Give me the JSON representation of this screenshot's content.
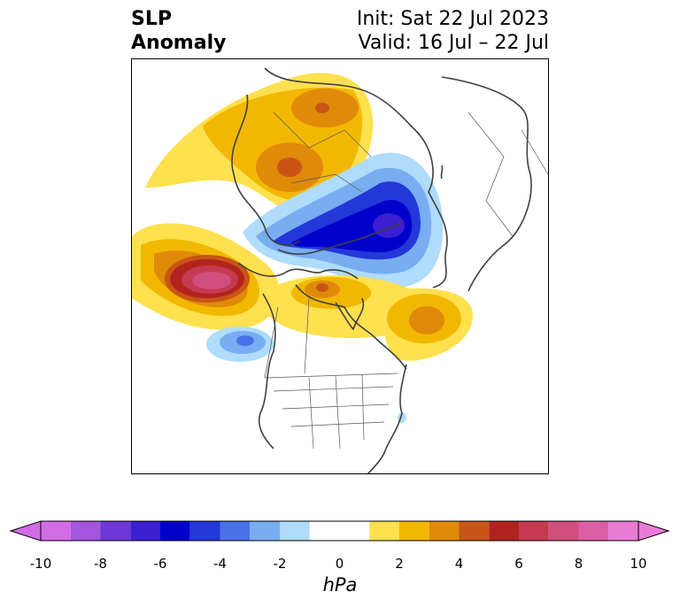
{
  "title": {
    "left_line1": "SLP",
    "left_line2": "Anomaly",
    "right_line1": "Init: Sat 22 Jul 2023",
    "right_line2": "Valid: 16 Jul – 22 Jul"
  },
  "colorbar": {
    "label": "hPa",
    "ticks": [
      "-10",
      "-8",
      "-6",
      "-4",
      "-2",
      "0",
      "2",
      "4",
      "6",
      "8",
      "10"
    ],
    "colors": [
      "#d36be6",
      "#a456e0",
      "#6d38d8",
      "#3b1fd0",
      "#0000cc",
      "#2338d8",
      "#4a72e8",
      "#78adf2",
      "#aedcfa",
      "#ffffff",
      "#ffe04e",
      "#f2b800",
      "#e08a0a",
      "#c85516",
      "#b3231e",
      "#c43a50",
      "#d24e7e",
      "#dc5fa6",
      "#e87bd6"
    ]
  }
}
